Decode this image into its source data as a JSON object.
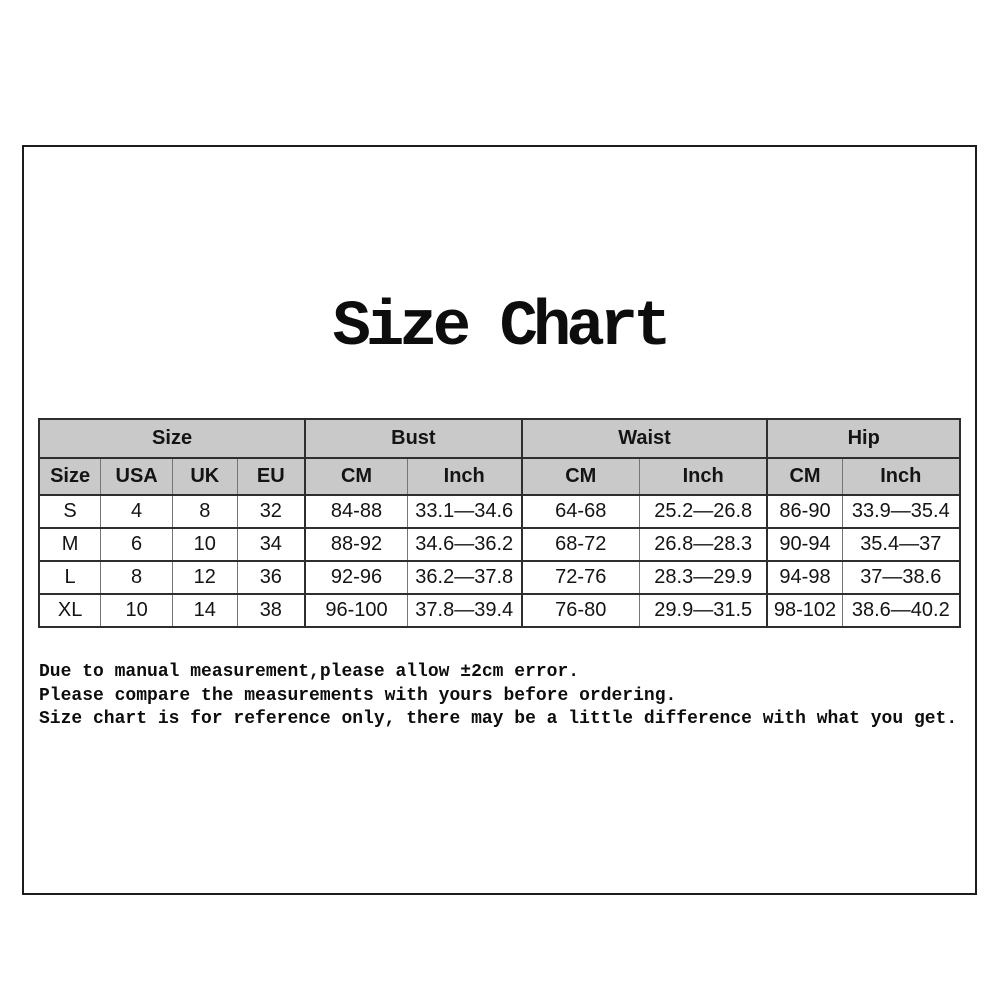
{
  "title": "Size Chart",
  "table": {
    "groups": [
      {
        "label": "Size",
        "span": 4
      },
      {
        "label": "Bust",
        "span": 2
      },
      {
        "label": "Waist",
        "span": 2
      },
      {
        "label": "Hip",
        "span": 2
      }
    ],
    "columns": [
      "Size",
      "USA",
      "UK",
      "EU",
      "CM",
      "Inch",
      "CM",
      "Inch",
      "CM",
      "Inch"
    ],
    "rows": [
      [
        "S",
        "4",
        "8",
        "32",
        "84-88",
        "33.1—34.6",
        "64-68",
        "25.2—26.8",
        "86-90",
        "33.9—35.4"
      ],
      [
        "M",
        "6",
        "10",
        "34",
        "88-92",
        "34.6—36.2",
        "68-72",
        "26.8—28.3",
        "90-94",
        "35.4—37"
      ],
      [
        "L",
        "8",
        "12",
        "36",
        "92-96",
        "36.2—37.8",
        "72-76",
        "28.3—29.9",
        "94-98",
        "37—38.6"
      ],
      [
        "XL",
        "10",
        "14",
        "38",
        "96-100",
        "37.8—39.4",
        "76-80",
        "29.9—31.5",
        "98-102",
        "38.6—40.2"
      ]
    ]
  },
  "notes": [
    "Due to manual measurement,please allow ±2cm error.",
    "Please compare the measurements with yours before ordering.",
    "Size chart is for reference only, there may be a little difference with what you get."
  ],
  "colors": {
    "header_bg": "#c9c9c9",
    "border_dark": "#2e2e2e",
    "border_light": "#757575",
    "page_border": "#1c1c1c",
    "text": "#141414"
  }
}
